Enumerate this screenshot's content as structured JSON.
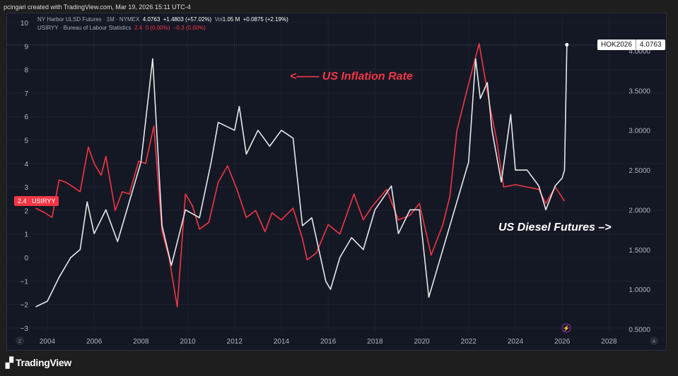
{
  "credit": "pcingari created with TradingView.com, Mar 19, 2026 15:11 UTC-4",
  "legend": {
    "l1_name": "NY Harbor ULSD Futures · 1M · NYMEX",
    "l1_price": "4.0763",
    "l1_change": "+1.4803 (+57.02%)",
    "l1_vol_label": "Vol",
    "l1_vol": "1.05 M",
    "l1_change2": "+0.0875 (+2.19%)",
    "l2_name": "USIRYY · Bureau of Labour Statistics",
    "l2_value": "2.4",
    "l2_change": "0 (0.00%)",
    "l2_change2": "−0.3 (0.00%)"
  },
  "annotations": {
    "inflation": "<—— US Inflation Rate",
    "diesel": "US Diesel Futures –>"
  },
  "price_tag": {
    "symbol": "HOK2026",
    "value": "4.0763"
  },
  "left_tag": {
    "value": "2.4",
    "symbol": "USIRYY"
  },
  "axis_buttons": {
    "left": "Z",
    "right": "A"
  },
  "brand": "TradingView",
  "colors": {
    "inflation": "#f23645",
    "diesel": "#e8e8ec",
    "background": "#141824"
  },
  "chart_data": {
    "type": "line",
    "x_ticks": [
      "2004",
      "2006",
      "2008",
      "2010",
      "2012",
      "2014",
      "2016",
      "2018",
      "2020",
      "2022",
      "2024",
      "2026",
      "2028"
    ],
    "left_axis": {
      "ticks": [
        "10",
        "9",
        "8",
        "7",
        "6",
        "5",
        "4",
        "3",
        "2",
        "1",
        "0",
        "−1",
        "−2",
        "−3"
      ],
      "range": [
        -3,
        10
      ]
    },
    "right_axis": {
      "ticks": [
        "4.0000",
        "3.5000",
        "3.0000",
        "2.5000",
        "2.0000",
        "1.5000",
        "1.0000",
        "0.5000"
      ],
      "range": [
        0.5,
        4.1
      ]
    },
    "series": [
      {
        "name": "USIRYY",
        "axis": "left",
        "points": [
          [
            2003.5,
            2.1
          ],
          [
            2003.9,
            1.9
          ],
          [
            2004.2,
            1.7
          ],
          [
            2004.5,
            3.3
          ],
          [
            2004.8,
            3.2
          ],
          [
            2005.1,
            3.0
          ],
          [
            2005.4,
            2.8
          ],
          [
            2005.75,
            4.7
          ],
          [
            2006,
            4.0
          ],
          [
            2006.3,
            3.5
          ],
          [
            2006.5,
            4.3
          ],
          [
            2006.9,
            2.0
          ],
          [
            2007.2,
            2.8
          ],
          [
            2007.5,
            2.7
          ],
          [
            2007.9,
            4.1
          ],
          [
            2008.2,
            4.0
          ],
          [
            2008.55,
            5.6
          ],
          [
            2008.9,
            1.1
          ],
          [
            2009.2,
            0.0
          ],
          [
            2009.55,
            -2.1
          ],
          [
            2009.9,
            2.7
          ],
          [
            2010.2,
            2.2
          ],
          [
            2010.5,
            1.2
          ],
          [
            2010.9,
            1.5
          ],
          [
            2011.3,
            3.2
          ],
          [
            2011.7,
            3.9
          ],
          [
            2012.1,
            2.9
          ],
          [
            2012.5,
            1.7
          ],
          [
            2012.9,
            2.0
          ],
          [
            2013.3,
            1.1
          ],
          [
            2013.6,
            1.9
          ],
          [
            2014,
            1.6
          ],
          [
            2014.5,
            2.1
          ],
          [
            2014.9,
            0.8
          ],
          [
            2015.1,
            -0.1
          ],
          [
            2015.5,
            0.2
          ],
          [
            2016,
            1.4
          ],
          [
            2016.5,
            1.0
          ],
          [
            2017.1,
            2.7
          ],
          [
            2017.5,
            1.6
          ],
          [
            2017.9,
            2.2
          ],
          [
            2018.5,
            2.9
          ],
          [
            2019,
            1.6
          ],
          [
            2019.5,
            1.8
          ],
          [
            2019.9,
            2.3
          ],
          [
            2020.4,
            0.1
          ],
          [
            2020.9,
            1.4
          ],
          [
            2021.2,
            2.6
          ],
          [
            2021.5,
            5.4
          ],
          [
            2021.9,
            7.0
          ],
          [
            2022.45,
            9.1
          ],
          [
            2022.9,
            6.5
          ],
          [
            2023.2,
            5.0
          ],
          [
            2023.5,
            3.0
          ],
          [
            2024,
            3.1
          ],
          [
            2024.5,
            3.0
          ],
          [
            2025,
            2.9
          ],
          [
            2025.3,
            2.3
          ],
          [
            2025.7,
            3.0
          ],
          [
            2026.1,
            2.4
          ]
        ]
      },
      {
        "name": "HOK2026",
        "axis": "right",
        "points": [
          [
            2003.5,
            0.78
          ],
          [
            2004,
            0.85
          ],
          [
            2004.5,
            1.15
          ],
          [
            2005,
            1.4
          ],
          [
            2005.4,
            1.5
          ],
          [
            2005.7,
            2.1
          ],
          [
            2006,
            1.7
          ],
          [
            2006.5,
            2.0
          ],
          [
            2007,
            1.6
          ],
          [
            2007.5,
            2.1
          ],
          [
            2008,
            2.6
          ],
          [
            2008.5,
            3.9
          ],
          [
            2008.9,
            1.8
          ],
          [
            2009.3,
            1.3
          ],
          [
            2009.9,
            2.0
          ],
          [
            2010.5,
            1.9
          ],
          [
            2011,
            2.6
          ],
          [
            2011.3,
            3.1
          ],
          [
            2012,
            3.0
          ],
          [
            2012.2,
            3.3
          ],
          [
            2012.5,
            2.7
          ],
          [
            2013,
            3.0
          ],
          [
            2013.5,
            2.8
          ],
          [
            2014,
            3.0
          ],
          [
            2014.5,
            2.9
          ],
          [
            2014.9,
            1.8
          ],
          [
            2015.3,
            1.9
          ],
          [
            2015.9,
            1.1
          ],
          [
            2016.1,
            1.0
          ],
          [
            2016.5,
            1.4
          ],
          [
            2017,
            1.65
          ],
          [
            2017.5,
            1.5
          ],
          [
            2018,
            2.0
          ],
          [
            2018.7,
            2.3
          ],
          [
            2019,
            1.7
          ],
          [
            2019.5,
            2.0
          ],
          [
            2019.9,
            2.0
          ],
          [
            2020.3,
            0.9
          ],
          [
            2020.6,
            1.2
          ],
          [
            2021,
            1.6
          ],
          [
            2021.5,
            2.1
          ],
          [
            2022,
            2.6
          ],
          [
            2022.3,
            3.9
          ],
          [
            2022.5,
            3.4
          ],
          [
            2022.8,
            3.6
          ],
          [
            2023,
            3.0
          ],
          [
            2023.4,
            2.35
          ],
          [
            2023.8,
            3.2
          ],
          [
            2024,
            2.5
          ],
          [
            2024.5,
            2.5
          ],
          [
            2025,
            2.3
          ],
          [
            2025.3,
            2.0
          ],
          [
            2025.7,
            2.3
          ],
          [
            2026,
            2.4
          ],
          [
            2026.1,
            2.5
          ],
          [
            2026.2,
            4.0763
          ]
        ]
      }
    ]
  }
}
